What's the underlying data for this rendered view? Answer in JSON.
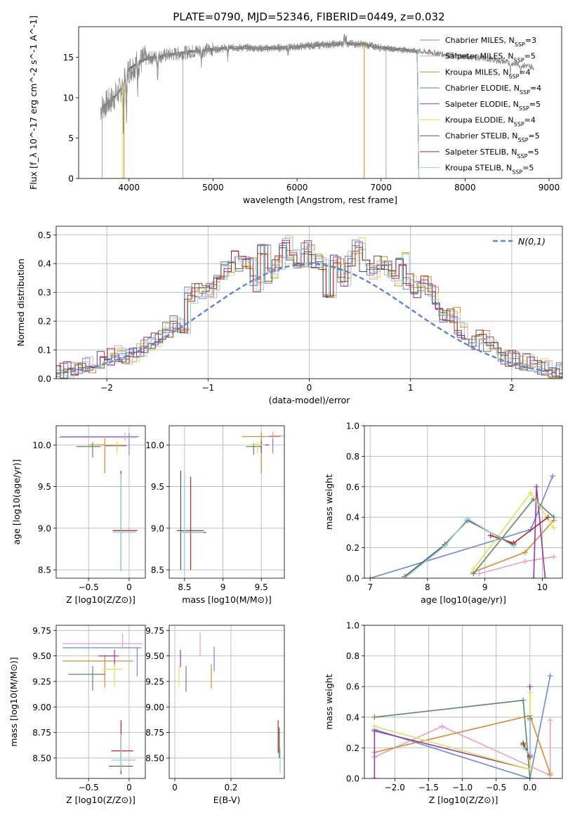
{
  "figure": {
    "title": "PLATE=0790, MJD=52346, FIBERID=0449, z=0.032"
  },
  "colors": {
    "Chabrier MILES": "#6a8ad6",
    "Salpeter MILES": "#e9a0c7",
    "Kroupa MILES": "#d98a2b",
    "Chabrier ELODIE": "#5d8a67",
    "Salpeter ELODIE": "#9a36b0",
    "Kroupa ELODIE": "#d5e85a",
    "Chabrier STELIB": "#555555",
    "Salpeter STELIB": "#b5281e",
    "Kroupa STELIB": "#8fd0e0",
    "gauss": "#5b86d6",
    "grid": "#b0b0b0"
  },
  "chart_data": [
    {
      "id": "spectrum",
      "type": "line",
      "xlabel": "wavelength [Angstrom, rest frame]",
      "ylabel": "Flux [f_λ 10^-17 erg cm^-2 s^-1 A^-1]",
      "xlim": [
        3400,
        9150
      ],
      "ylim": [
        0,
        18.8
      ],
      "xticks": [
        4000,
        5000,
        6000,
        7000,
        8000,
        9000
      ],
      "yticks": [
        0,
        5,
        10,
        15
      ],
      "grid": false,
      "legend_position": "top-right",
      "legend": [
        {
          "name": "Chabrier MILES",
          "n": "3"
        },
        {
          "name": "Salpeter MILES",
          "n": "5"
        },
        {
          "name": "Kroupa MILES",
          "n": "4"
        },
        {
          "name": "Chabrier ELODIE",
          "n": "4"
        },
        {
          "name": "Salpeter ELODIE",
          "n": "5"
        },
        {
          "name": "Kroupa ELODIE",
          "n": "4"
        },
        {
          "name": "Chabrier STELIB",
          "n": "5"
        },
        {
          "name": "Salpeter STELIB",
          "n": "5"
        },
        {
          "name": "Kroupa STELIB",
          "n": "5"
        }
      ],
      "continuum": {
        "wavelength": [
          3650,
          3700,
          3800,
          3900,
          4000,
          4100,
          4200,
          4400,
          4600,
          4800,
          5000,
          5200,
          5400,
          5600,
          5800,
          6000,
          6200,
          6400,
          6600,
          6800,
          7000,
          7200,
          7400,
          7600,
          7800,
          8000,
          8200,
          8400,
          8600,
          8800
        ],
        "flux": [
          8.5,
          9.0,
          9.8,
          11.0,
          13.5,
          14.3,
          14.8,
          15.2,
          15.5,
          15.8,
          16.0,
          16.2,
          16.2,
          16.1,
          16.2,
          16.3,
          16.5,
          16.6,
          16.7,
          16.6,
          16.2,
          16.0,
          15.8,
          15.6,
          15.3,
          15.1,
          14.9,
          14.6,
          14.2,
          13.8
        ]
      },
      "spectrum_end": {
        "data": 8820,
        "models": 7430
      }
    },
    {
      "id": "residuals",
      "type": "histogram",
      "xlabel": "(data-model)/error",
      "ylabel": "Normed distribution",
      "xlim": [
        -2.5,
        2.5
      ],
      "ylim": [
        0,
        0.53
      ],
      "xticks": [
        -2,
        -1,
        0,
        1,
        2
      ],
      "yticks": [
        0.0,
        0.1,
        0.2,
        0.3,
        0.4,
        0.5
      ],
      "grid": true,
      "legend_position": "top-right",
      "gauss_label": "N(0,1)",
      "bin_width": 0.1,
      "base_profile": [
        0.02,
        0.025,
        0.03,
        0.035,
        0.04,
        0.048,
        0.055,
        0.065,
        0.075,
        0.085,
        0.07,
        0.08,
        0.1,
        0.12,
        0.13,
        0.15,
        0.17,
        0.19,
        0.17,
        0.29,
        0.31,
        0.3,
        0.31,
        0.36,
        0.38,
        0.43,
        0.4,
        0.4,
        0.33,
        0.45,
        0.36,
        0.4,
        0.47,
        0.42,
        0.38,
        0.45,
        0.41,
        0.4,
        0.31,
        0.4,
        0.35,
        0.42,
        0.46,
        0.4,
        0.37,
        0.4,
        0.38,
        0.35,
        0.41,
        0.34,
        0.31,
        0.33,
        0.3,
        0.25,
        0.22,
        0.22,
        0.17,
        0.16,
        0.12,
        0.14,
        0.12,
        0.1,
        0.08,
        0.07,
        0.06,
        0.06,
        0.05,
        0.04,
        0.035,
        0.03,
        0.028,
        0.025
      ]
    },
    {
      "id": "age-vs-Z",
      "type": "errorbar",
      "xlabel": "Z [log10(Z/Z⊙)]",
      "ylabel": "age [log10(age/yr)]",
      "xlim": [
        -0.9,
        0.2
      ],
      "ylim": [
        8.4,
        10.23
      ],
      "xticks": [
        -0.5,
        0.0
      ],
      "yticks": [
        8.5,
        9.0,
        9.5,
        10.0
      ],
      "grid": true,
      "points": [
        {
          "model": "Chabrier MILES",
          "x": 0.0,
          "y": 10.1,
          "xerr": [
            0.85,
            0.12
          ],
          "yerr": [
            0.22,
            0.04
          ]
        },
        {
          "model": "Salpeter MILES",
          "x": -0.05,
          "y": 10.09,
          "xerr": [
            0.82,
            0.15
          ],
          "yerr": [
            0.04,
            0.06
          ]
        },
        {
          "model": "Kroupa MILES",
          "x": -0.3,
          "y": 10.0,
          "xerr": [
            0.2,
            0.25
          ],
          "yerr": [
            0.34,
            0.08
          ]
        },
        {
          "model": "Chabrier ELODIE",
          "x": -0.45,
          "y": 9.98,
          "xerr": [
            0.2,
            0.1
          ],
          "yerr": [
            0.13,
            0.05
          ]
        },
        {
          "model": "Salpeter ELODIE",
          "x": -0.15,
          "y": 9.99,
          "xerr": [
            0.15,
            0.12
          ],
          "yerr": [
            0.06,
            0.05
          ]
        },
        {
          "model": "Kroupa ELODIE",
          "x": -0.15,
          "y": 10.0,
          "xerr": [
            0.15,
            0.1
          ],
          "yerr": [
            0.1,
            0.04
          ]
        },
        {
          "model": "Chabrier STELIB",
          "x": -0.1,
          "y": 8.97,
          "xerr": [
            0.1,
            0.2
          ],
          "yerr": [
            0.47,
            0.72
          ]
        },
        {
          "model": "Salpeter STELIB",
          "x": -0.1,
          "y": 8.97,
          "xerr": [
            0.1,
            0.2
          ],
          "yerr": [
            0.05,
            0.05
          ]
        },
        {
          "model": "Kroupa STELIB",
          "x": -0.1,
          "y": 8.95,
          "xerr": [
            0.1,
            0.18
          ],
          "yerr": [
            0.47,
            0.7
          ]
        }
      ]
    },
    {
      "id": "age-vs-mass",
      "type": "errorbar",
      "xlabel": "mass [log10(M/M⊙)]",
      "ylabel": "",
      "xlim": [
        8.3,
        9.8
      ],
      "ylim": [
        8.4,
        10.23
      ],
      "xticks": [
        8.5,
        9.0,
        9.5
      ],
      "yticks": [
        8.5,
        9.0,
        9.5,
        10.0
      ],
      "grid": true,
      "points": [
        {
          "model": "Chabrier MILES",
          "x": 9.65,
          "y": 10.1,
          "xerr": [
            0.05,
            0.05
          ],
          "yerr": [
            0.2,
            0.04
          ]
        },
        {
          "model": "Salpeter MILES",
          "x": 9.65,
          "y": 10.11,
          "xerr": [
            0.05,
            0.15
          ],
          "yerr": [
            0.04,
            0.05
          ]
        },
        {
          "model": "Kroupa MILES",
          "x": 9.5,
          "y": 10.1,
          "xerr": [
            0.25,
            0.25
          ],
          "yerr": [
            0.44,
            0.05
          ]
        },
        {
          "model": "Chabrier ELODIE",
          "x": 9.4,
          "y": 9.98,
          "xerr": [
            0.1,
            0.1
          ],
          "yerr": [
            0.1,
            0.04
          ]
        },
        {
          "model": "Salpeter ELODIE",
          "x": 9.5,
          "y": 10.0,
          "xerr": [
            0.1,
            0.1
          ],
          "yerr": [
            0.1,
            0.05
          ]
        },
        {
          "model": "Kroupa ELODIE",
          "x": 9.45,
          "y": 10.0,
          "xerr": [
            0.1,
            0.1
          ],
          "yerr": [
            0.1,
            0.04
          ]
        },
        {
          "model": "Chabrier STELIB",
          "x": 8.45,
          "y": 8.97,
          "xerr": [
            0.05,
            0.3
          ],
          "yerr": [
            0.47,
            0.72
          ]
        },
        {
          "model": "Salpeter STELIB",
          "x": 8.58,
          "y": 8.95,
          "xerr": [
            0.1,
            0.2
          ],
          "yerr": [
            0.45,
            0.67
          ]
        },
        {
          "model": "Kroupa STELIB",
          "x": 8.5,
          "y": 8.95,
          "xerr": [
            0.05,
            0.25
          ],
          "yerr": [
            0.5,
            0.72
          ]
        }
      ]
    },
    {
      "id": "weight-vs-age",
      "type": "line",
      "xlabel": "age [log10(age/yr)]",
      "ylabel": "mass weight",
      "xlim": [
        6.9,
        10.35
      ],
      "ylim": [
        0,
        1.0
      ],
      "xticks": [
        7,
        8,
        9,
        10
      ],
      "yticks": [
        0.0,
        0.2,
        0.4,
        0.6,
        0.8,
        1.0
      ],
      "grid": true,
      "series": [
        {
          "model": "Chabrier MILES",
          "x": [
            7.0,
            9.8,
            10.18
          ],
          "y": [
            0.0,
            0.32,
            0.67
          ]
        },
        {
          "model": "Salpeter MILES",
          "x": [
            8.9,
            9.7,
            10.2
          ],
          "y": [
            0.03,
            0.11,
            0.14
          ]
        },
        {
          "model": "Kroupa MILES",
          "x": [
            8.8,
            9.7,
            10.2
          ],
          "y": [
            0.04,
            0.17,
            0.38
          ]
        },
        {
          "model": "Chabrier ELODIE",
          "x": [
            8.8,
            9.85,
            10.2
          ],
          "y": [
            0.03,
            0.52,
            0.4
          ]
        },
        {
          "model": "Salpeter ELODIE",
          "x": [
            9.85,
            9.9,
            10.05
          ],
          "y": [
            0.0,
            0.6,
            0.0
          ]
        },
        {
          "model": "Kroupa ELODIE",
          "x": [
            8.8,
            9.8,
            10.2
          ],
          "y": [
            0.06,
            0.56,
            0.33
          ]
        },
        {
          "model": "Chabrier STELIB",
          "x": [
            7.6,
            8.3,
            8.7,
            9.5
          ],
          "y": [
            0.01,
            0.22,
            0.38,
            0.22
          ]
        },
        {
          "model": "Salpeter STELIB",
          "x": [
            9.1,
            9.5,
            10.1
          ],
          "y": [
            0.28,
            0.23,
            0.4
          ]
        },
        {
          "model": "Kroupa STELIB",
          "x": [
            7.6,
            8.3,
            8.7,
            9.5
          ],
          "y": [
            0.0,
            0.21,
            0.39,
            0.21
          ]
        }
      ]
    },
    {
      "id": "mass-vs-Z",
      "type": "errorbar",
      "xlabel": "Z [log10(Z/Z⊙)]",
      "ylabel": "mass [log10(M/M⊙)]",
      "xlim": [
        -0.9,
        0.2
      ],
      "ylim": [
        8.3,
        9.8
      ],
      "xticks": [
        -0.5,
        0.0
      ],
      "yticks": [
        8.5,
        8.75,
        9.0,
        9.25,
        9.5,
        9.75
      ],
      "grid": true,
      "points": [
        {
          "model": "Chabrier MILES",
          "x": 0.1,
          "y": 9.58,
          "xerr": [
            0.92,
            0.05
          ],
          "yerr": [
            0.28,
            0.0
          ]
        },
        {
          "model": "Salpeter MILES",
          "x": -0.08,
          "y": 9.62,
          "xerr": [
            0.74,
            0.25
          ],
          "yerr": [
            0.05,
            0.1
          ]
        },
        {
          "model": "Kroupa MILES",
          "x": -0.3,
          "y": 9.45,
          "xerr": [
            0.52,
            0.35
          ],
          "yerr": [
            0.26,
            0.06
          ]
        },
        {
          "model": "Chabrier ELODIE",
          "x": -0.45,
          "y": 9.32,
          "xerr": [
            0.3,
            0.15
          ],
          "yerr": [
            0.16,
            0.08
          ]
        },
        {
          "model": "Salpeter ELODIE",
          "x": -0.18,
          "y": 9.5,
          "xerr": [
            0.2,
            0.05
          ],
          "yerr": [
            0.1,
            0.06
          ]
        },
        {
          "model": "Kroupa ELODIE",
          "x": -0.18,
          "y": 9.37,
          "xerr": [
            0.15,
            0.1
          ],
          "yerr": [
            0.17,
            0.05
          ]
        },
        {
          "model": "Chabrier STELIB",
          "x": -0.1,
          "y": 8.42,
          "xerr": [
            0.15,
            0.15
          ],
          "yerr": [
            0.08,
            0.3
          ]
        },
        {
          "model": "Salpeter STELIB",
          "x": -0.1,
          "y": 8.57,
          "xerr": [
            0.12,
            0.15
          ],
          "yerr": [
            0.1,
            0.3
          ]
        },
        {
          "model": "Kroupa STELIB",
          "x": -0.1,
          "y": 8.48,
          "xerr": [
            0.12,
            0.18
          ],
          "yerr": [
            0.1,
            0.25
          ]
        }
      ]
    },
    {
      "id": "mass-vs-ebv",
      "type": "errorbar",
      "xlabel": "E(B-V)",
      "ylabel": "",
      "xlim": [
        -0.02,
        0.39
      ],
      "ylim": [
        8.3,
        9.8
      ],
      "xticks": [
        0.0,
        0.2
      ],
      "yticks": [
        8.5,
        8.75,
        9.0,
        9.25,
        9.5,
        9.75
      ],
      "grid": true,
      "points": [
        {
          "model": "Chabrier MILES",
          "x": 0.14,
          "y": 9.45,
          "xerr": [
            0,
            0
          ],
          "yerr": [
            0.1,
            0.14
          ]
        },
        {
          "model": "Salpeter MILES",
          "x": 0.09,
          "y": 9.6,
          "xerr": [
            0,
            0
          ],
          "yerr": [
            0.1,
            0.13
          ]
        },
        {
          "model": "Kroupa MILES",
          "x": 0.13,
          "y": 9.3,
          "xerr": [
            0,
            0
          ],
          "yerr": [
            0.12,
            0.12
          ]
        },
        {
          "model": "Chabrier ELODIE",
          "x": 0.04,
          "y": 9.27,
          "xerr": [
            0,
            0
          ],
          "yerr": [
            0.12,
            0.13
          ]
        },
        {
          "model": "Salpeter ELODIE",
          "x": 0.02,
          "y": 9.47,
          "xerr": [
            0,
            0
          ],
          "yerr": [
            0.08,
            0.09
          ]
        },
        {
          "model": "Kroupa ELODIE",
          "x": 0.015,
          "y": 9.3,
          "xerr": [
            0,
            0
          ],
          "yerr": [
            0.1,
            0.1
          ]
        },
        {
          "model": "Chabrier STELIB",
          "x": 0.372,
          "y": 8.6,
          "xerr": [
            0,
            0
          ],
          "yerr": [
            0.1,
            0.2
          ]
        },
        {
          "model": "Salpeter STELIB",
          "x": 0.368,
          "y": 8.7,
          "xerr": [
            0,
            0
          ],
          "yerr": [
            0.15,
            0.17
          ]
        },
        {
          "model": "Kroupa STELIB",
          "x": 0.375,
          "y": 8.45,
          "xerr": [
            0,
            0
          ],
          "yerr": [
            0.1,
            0.15
          ]
        }
      ]
    },
    {
      "id": "weight-vs-Z",
      "type": "line",
      "xlabel": "Z [log10(Z/Z⊙)]",
      "ylabel": "mass weight",
      "xlim": [
        -2.45,
        0.48
      ],
      "ylim": [
        0,
        1.0
      ],
      "xticks": [
        -2.0,
        -1.5,
        -1.0,
        -0.5,
        0.0
      ],
      "yticks": [
        0.0,
        0.2,
        0.4,
        0.6,
        0.8,
        1.0
      ],
      "grid": true,
      "series": [
        {
          "model": "Chabrier MILES",
          "x": [
            -2.3,
            0.0,
            0.3
          ],
          "y": [
            0.32,
            0.0,
            0.67
          ]
        },
        {
          "model": "Salpeter MILES",
          "x": [
            -2.3,
            -1.3,
            0.3,
            0.3
          ],
          "y": [
            0.14,
            0.34,
            0.02,
            0.38
          ]
        },
        {
          "model": "Kroupa MILES",
          "x": [
            -2.3,
            0.0,
            0.3
          ],
          "y": [
            0.17,
            0.41,
            0.03
          ]
        },
        {
          "model": "Chabrier ELODIE",
          "x": [
            -2.3,
            -0.1,
            0.0
          ],
          "y": [
            0.4,
            0.51,
            0.0
          ]
        },
        {
          "model": "Salpeter ELODIE",
          "x": [
            -2.3,
            -2.3,
            0.0,
            0.0
          ],
          "y": [
            0.0,
            0.31,
            0.06,
            0.6
          ]
        },
        {
          "model": "Kroupa ELODIE",
          "x": [
            -2.3,
            0.0,
            0.0
          ],
          "y": [
            0.34,
            0.06,
            0.56
          ]
        },
        {
          "model": "Chabrier STELIB",
          "x": [
            -0.1,
            0.0,
            0.0
          ],
          "y": [
            0.22,
            0.15,
            0.39
          ]
        },
        {
          "model": "Salpeter STELIB",
          "x": [
            -0.1,
            0.0,
            0.0
          ],
          "y": [
            0.23,
            0.14,
            0.38
          ]
        },
        {
          "model": "Kroupa STELIB",
          "x": [
            -0.1,
            0.0,
            0.0
          ],
          "y": [
            0.2,
            0.16,
            0.38
          ]
        }
      ]
    }
  ]
}
